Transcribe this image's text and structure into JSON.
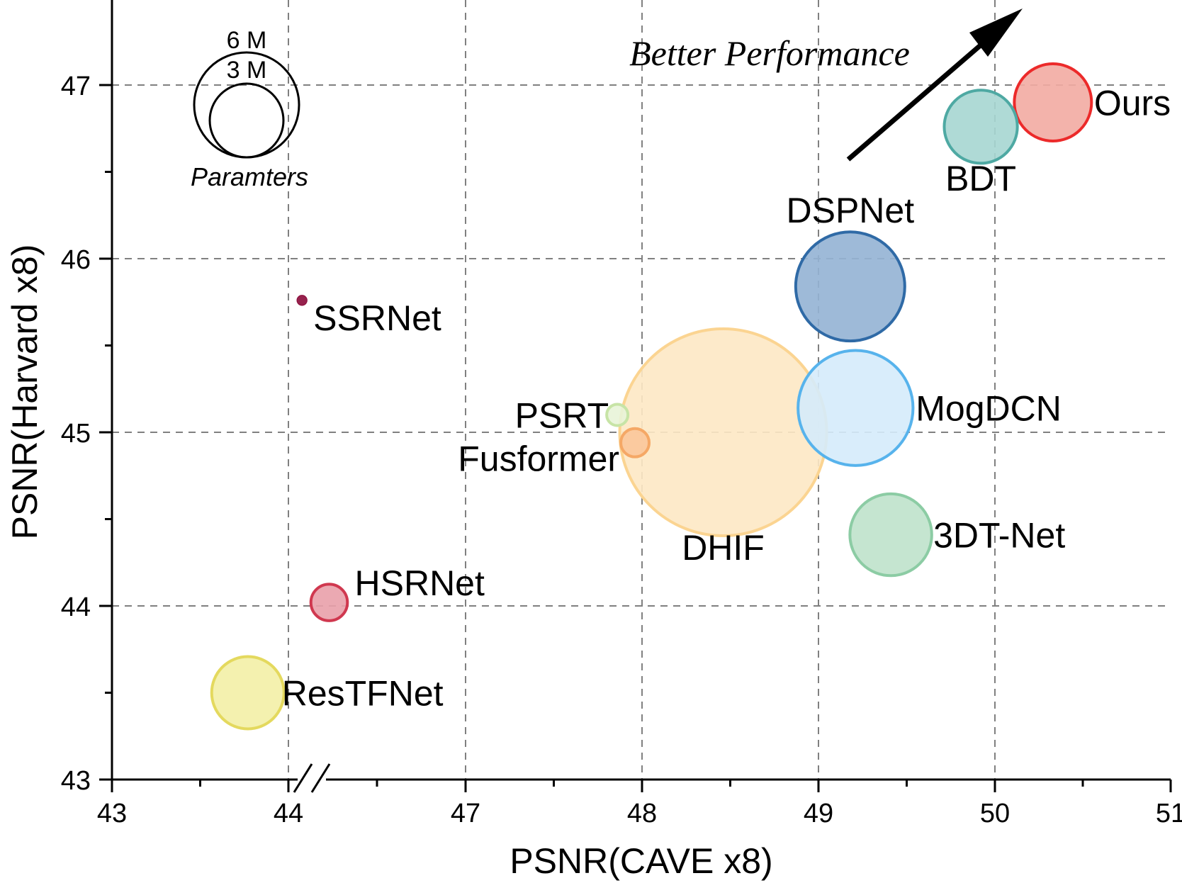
{
  "chart_data": {
    "type": "scatter",
    "xlabel": "PSNR(CAVE x8)",
    "ylabel": "PSNR(Harvard x8)",
    "x_ticks": [
      "43",
      "44",
      "47",
      "48",
      "49",
      "50",
      "51"
    ],
    "y_ticks": [
      "43",
      "44",
      "45",
      "46",
      "47"
    ],
    "ylim": [
      43,
      47.5
    ],
    "x_axis_break": "between 44 and 47",
    "grid": true,
    "annotation": "Better Performance",
    "size_legend": {
      "title": "Paramters",
      "entries": [
        {
          "label": "6 M",
          "params": 6
        },
        {
          "label": "3 M",
          "params": 3
        }
      ]
    },
    "points": [
      {
        "name": "Ours",
        "x": 50.33,
        "y": 46.9,
        "size": 4.6,
        "fill": "#f2aba2",
        "stroke": "#ec2a2a"
      },
      {
        "name": "BDT",
        "x": 49.92,
        "y": 46.76,
        "size": 4.1,
        "fill": "#a6d6d2",
        "stroke": "#4ea9a3"
      },
      {
        "name": "DSPNet",
        "x": 49.18,
        "y": 45.84,
        "size": 9.5,
        "fill": "#93b2d4",
        "stroke": "#2f6aa6"
      },
      {
        "name": "MogDCN",
        "x": 49.21,
        "y": 45.14,
        "size": 10.6,
        "fill": "#d5ebfb",
        "stroke": "#57b3ec"
      },
      {
        "name": "DHIF",
        "x": 48.46,
        "y": 45.0,
        "size": 35.5,
        "fill": "#fde8c4",
        "stroke": "#fbd491"
      },
      {
        "name": "3DT-Net",
        "x": 49.41,
        "y": 44.41,
        "size": 5.2,
        "fill": "#bfe2cb",
        "stroke": "#8ccca4"
      },
      {
        "name": "PSRT",
        "x": 47.86,
        "y": 45.1,
        "size": 0.25,
        "fill": "#e8f4d8",
        "stroke": "#c7e4a6"
      },
      {
        "name": "Fusformer",
        "x": 47.96,
        "y": 44.94,
        "size": 0.5,
        "fill": "#fbc79a",
        "stroke": "#f5a866"
      },
      {
        "name": "SSRNet",
        "x": 44.23,
        "y": 45.76,
        "size": 0.03,
        "fill": "#8b0a3a",
        "stroke": "#8b0a3a"
      },
      {
        "name": "HSRNet",
        "x": 44.69,
        "y": 44.02,
        "size": 0.9,
        "fill": "#e9a0aa",
        "stroke": "#d0384f"
      },
      {
        "name": "ResTFNet",
        "x": 43.77,
        "y": 43.5,
        "size": 4.0,
        "fill": "#f3f0a6",
        "stroke": "#e4d95e"
      }
    ]
  }
}
